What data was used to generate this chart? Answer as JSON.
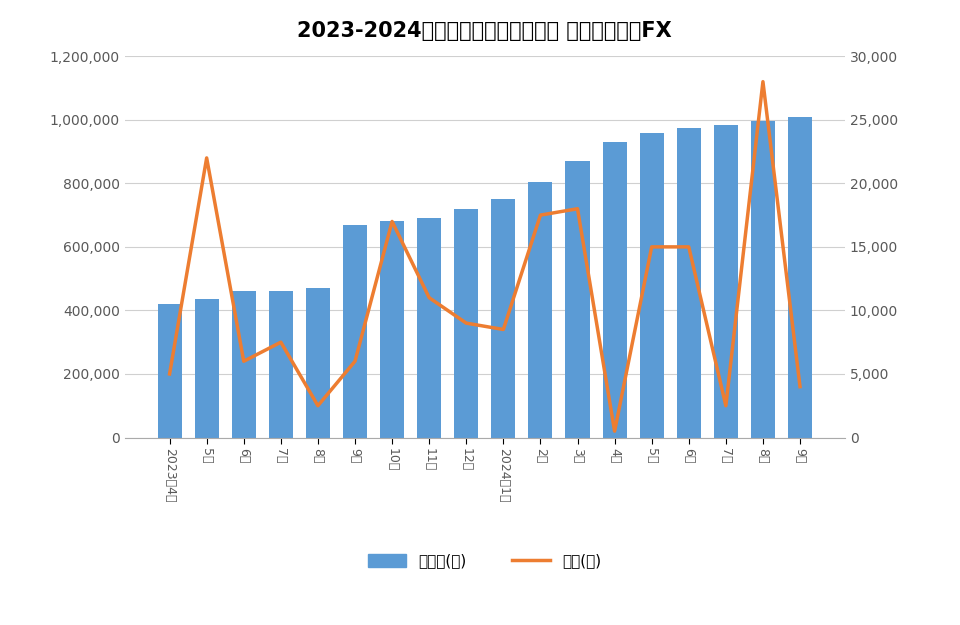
{
  "title": "2023-2024年　投資額と利益の推移 トライオートFX",
  "categories": [
    "2023年4月",
    "5月",
    "6月",
    "7月",
    "8月",
    "9月",
    "10月",
    "11月",
    "12月",
    "2024年1月",
    "2月",
    "3月",
    "4月",
    "5月",
    "6月",
    "7月",
    "8月",
    "9月"
  ],
  "investment": [
    420000,
    435000,
    460000,
    460000,
    470000,
    670000,
    680000,
    690000,
    720000,
    750000,
    805000,
    870000,
    930000,
    960000,
    975000,
    985000,
    995000,
    1010000
  ],
  "profit": [
    5000,
    22000,
    6000,
    7500,
    2500,
    6000,
    17000,
    11000,
    9000,
    8500,
    17500,
    18000,
    500,
    15000,
    15000,
    2500,
    28000,
    4000
  ],
  "bar_color": "#5B9BD5",
  "line_color": "#ED7D31",
  "left_ylim": [
    0,
    1200000
  ],
  "right_ylim": [
    0,
    30000
  ],
  "left_yticks": [
    0,
    200000,
    400000,
    600000,
    800000,
    1000000,
    1200000
  ],
  "right_yticks": [
    0,
    5000,
    10000,
    15000,
    20000,
    25000,
    30000
  ],
  "legend_investment": "投資額(円)",
  "legend_profit": "利益(円)",
  "background_color": "#FFFFFF",
  "grid_color": "#D0D0D0",
  "title_fontsize": 15,
  "label_fontsize": 11,
  "tick_fontsize": 10
}
